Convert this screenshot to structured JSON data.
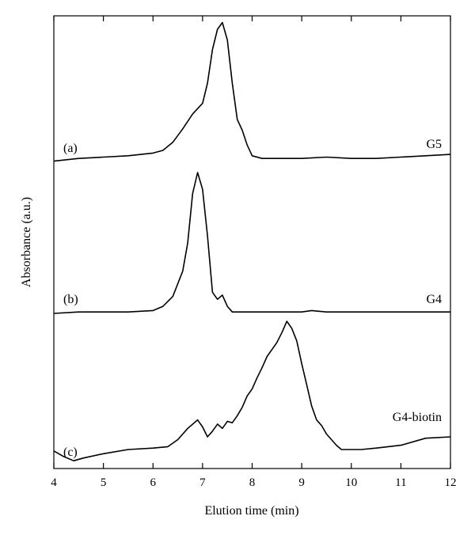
{
  "chart_data": {
    "type": "line",
    "title": "",
    "xlabel": "Elution time (min)",
    "ylabel": "Absorbance (a.u.)",
    "xlim": [
      4,
      12
    ],
    "x_ticks": [
      "4",
      "5",
      "6",
      "7",
      "8",
      "9",
      "10",
      "11",
      "12"
    ],
    "y_ticks": false,
    "grid": false,
    "legend": "none",
    "series": [
      {
        "name": "G5",
        "panel_label": "(a)",
        "points": [
          [
            4.0,
            0.02
          ],
          [
            4.5,
            0.04
          ],
          [
            5.0,
            0.05
          ],
          [
            5.5,
            0.06
          ],
          [
            6.0,
            0.08
          ],
          [
            6.2,
            0.1
          ],
          [
            6.4,
            0.16
          ],
          [
            6.6,
            0.26
          ],
          [
            6.8,
            0.37
          ],
          [
            7.0,
            0.45
          ],
          [
            7.1,
            0.6
          ],
          [
            7.2,
            0.85
          ],
          [
            7.3,
            1.0
          ],
          [
            7.4,
            1.05
          ],
          [
            7.5,
            0.92
          ],
          [
            7.6,
            0.6
          ],
          [
            7.7,
            0.33
          ],
          [
            7.8,
            0.25
          ],
          [
            7.9,
            0.14
          ],
          [
            8.0,
            0.06
          ],
          [
            8.2,
            0.04
          ],
          [
            8.5,
            0.04
          ],
          [
            9.0,
            0.04
          ],
          [
            9.5,
            0.05
          ],
          [
            10.0,
            0.04
          ],
          [
            10.5,
            0.04
          ],
          [
            11.0,
            0.05
          ],
          [
            11.5,
            0.06
          ],
          [
            12.0,
            0.07
          ]
        ]
      },
      {
        "name": "G4",
        "panel_label": "(b)",
        "points": [
          [
            4.0,
            0.0
          ],
          [
            4.5,
            0.01
          ],
          [
            5.0,
            0.01
          ],
          [
            5.5,
            0.01
          ],
          [
            6.0,
            0.02
          ],
          [
            6.2,
            0.05
          ],
          [
            6.4,
            0.12
          ],
          [
            6.6,
            0.3
          ],
          [
            6.7,
            0.5
          ],
          [
            6.8,
            0.85
          ],
          [
            6.9,
            1.0
          ],
          [
            7.0,
            0.88
          ],
          [
            7.1,
            0.55
          ],
          [
            7.2,
            0.15
          ],
          [
            7.3,
            0.1
          ],
          [
            7.4,
            0.13
          ],
          [
            7.5,
            0.05
          ],
          [
            7.6,
            0.01
          ],
          [
            8.0,
            0.01
          ],
          [
            8.5,
            0.01
          ],
          [
            9.0,
            0.01
          ],
          [
            9.2,
            0.02
          ],
          [
            9.5,
            0.01
          ],
          [
            10.0,
            0.01
          ],
          [
            10.5,
            0.01
          ],
          [
            11.0,
            0.01
          ],
          [
            11.5,
            0.01
          ],
          [
            12.0,
            0.01
          ]
        ]
      },
      {
        "name": "G4-biotin",
        "panel_label": "(c)",
        "points": [
          [
            4.0,
            0.08
          ],
          [
            4.2,
            0.04
          ],
          [
            4.4,
            0.01
          ],
          [
            4.6,
            0.03
          ],
          [
            5.0,
            0.06
          ],
          [
            5.5,
            0.09
          ],
          [
            6.0,
            0.1
          ],
          [
            6.3,
            0.11
          ],
          [
            6.5,
            0.16
          ],
          [
            6.7,
            0.24
          ],
          [
            6.9,
            0.3
          ],
          [
            7.0,
            0.25
          ],
          [
            7.1,
            0.18
          ],
          [
            7.2,
            0.22
          ],
          [
            7.3,
            0.27
          ],
          [
            7.4,
            0.24
          ],
          [
            7.5,
            0.29
          ],
          [
            7.6,
            0.28
          ],
          [
            7.7,
            0.33
          ],
          [
            7.8,
            0.39
          ],
          [
            7.9,
            0.47
          ],
          [
            8.0,
            0.52
          ],
          [
            8.1,
            0.6
          ],
          [
            8.2,
            0.67
          ],
          [
            8.3,
            0.75
          ],
          [
            8.4,
            0.8
          ],
          [
            8.5,
            0.85
          ],
          [
            8.6,
            0.92
          ],
          [
            8.7,
            1.0
          ],
          [
            8.8,
            0.95
          ],
          [
            8.9,
            0.86
          ],
          [
            9.0,
            0.7
          ],
          [
            9.1,
            0.55
          ],
          [
            9.2,
            0.4
          ],
          [
            9.3,
            0.3
          ],
          [
            9.4,
            0.26
          ],
          [
            9.5,
            0.2
          ],
          [
            9.6,
            0.16
          ],
          [
            9.7,
            0.12
          ],
          [
            9.8,
            0.09
          ],
          [
            10.0,
            0.09
          ],
          [
            10.2,
            0.09
          ],
          [
            10.5,
            0.1
          ],
          [
            11.0,
            0.12
          ],
          [
            11.5,
            0.17
          ],
          [
            12.0,
            0.18
          ]
        ]
      }
    ]
  }
}
